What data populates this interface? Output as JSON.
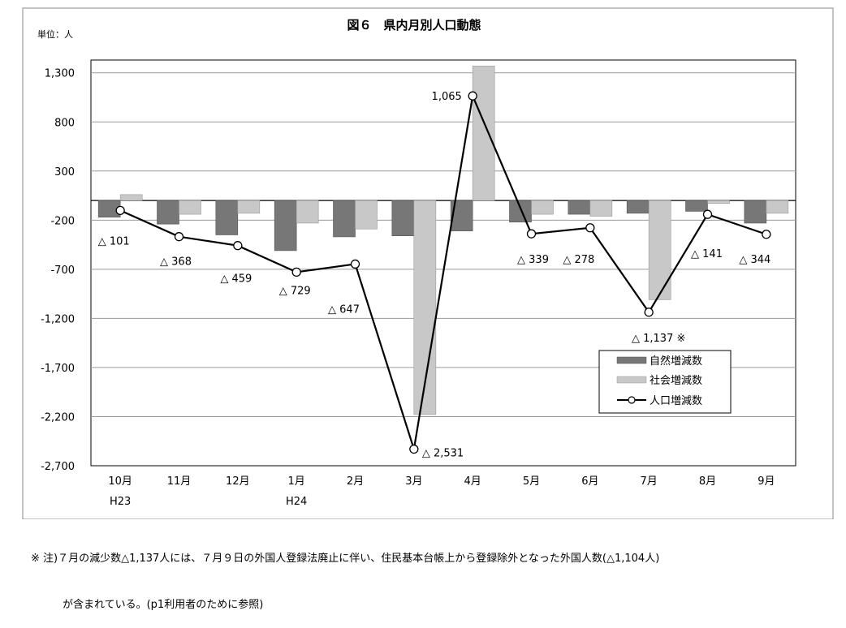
{
  "title": "図６　県内月別人口動態",
  "unit_label": "単位：人",
  "chart_data": {
    "type": "bar",
    "categories": [
      "10月",
      "11月",
      "12月",
      "1月",
      "2月",
      "3月",
      "4月",
      "5月",
      "6月",
      "7月",
      "8月",
      "9月"
    ],
    "year_labels": [
      {
        "index": 0,
        "label": "H23"
      },
      {
        "index": 3,
        "label": "H24"
      }
    ],
    "series": [
      {
        "name": "自然増減数",
        "type": "bar",
        "color": "#777777",
        "values": [
          -170,
          -240,
          -350,
          -510,
          -370,
          -360,
          -310,
          -220,
          -140,
          -130,
          -110,
          -230
        ]
      },
      {
        "name": "社会増減数",
        "type": "bar",
        "color": "#c8c8c8",
        "values": [
          60,
          -140,
          -130,
          -230,
          -290,
          -2180,
          1370,
          -140,
          -160,
          -1010,
          -30,
          -130
        ]
      },
      {
        "name": "人口増減数",
        "type": "line",
        "color": "#000000",
        "values": [
          -101,
          -368,
          -459,
          -729,
          -647,
          -2531,
          1065,
          -339,
          -278,
          -1137,
          -141,
          -344
        ]
      }
    ],
    "point_labels": [
      "△ 101",
      "△ 368",
      "△ 459",
      "△ 729",
      "△ 647",
      "△ 2,531",
      "1,065",
      "△ 339",
      "△ 278",
      "△ 1,137 ※",
      "△ 141",
      "△ 344"
    ],
    "y_ticks": [
      "1,300",
      "800",
      "300",
      "-200",
      "-700",
      "-1,200",
      "-1,700",
      "-2,200",
      "-2,700"
    ],
    "ylim": [
      -2700,
      1300
    ],
    "grid": true,
    "legend_position": "bottom-right"
  },
  "footnote": {
    "line1": "※ 注)７月の減少数△1,137人には、７月９日の外国人登録法廃止に伴い、住民基本台帳上から登録除外となった外国人数(△1,104人)",
    "line2": "　　　が含まれている。(p1利用者のために参照)"
  }
}
